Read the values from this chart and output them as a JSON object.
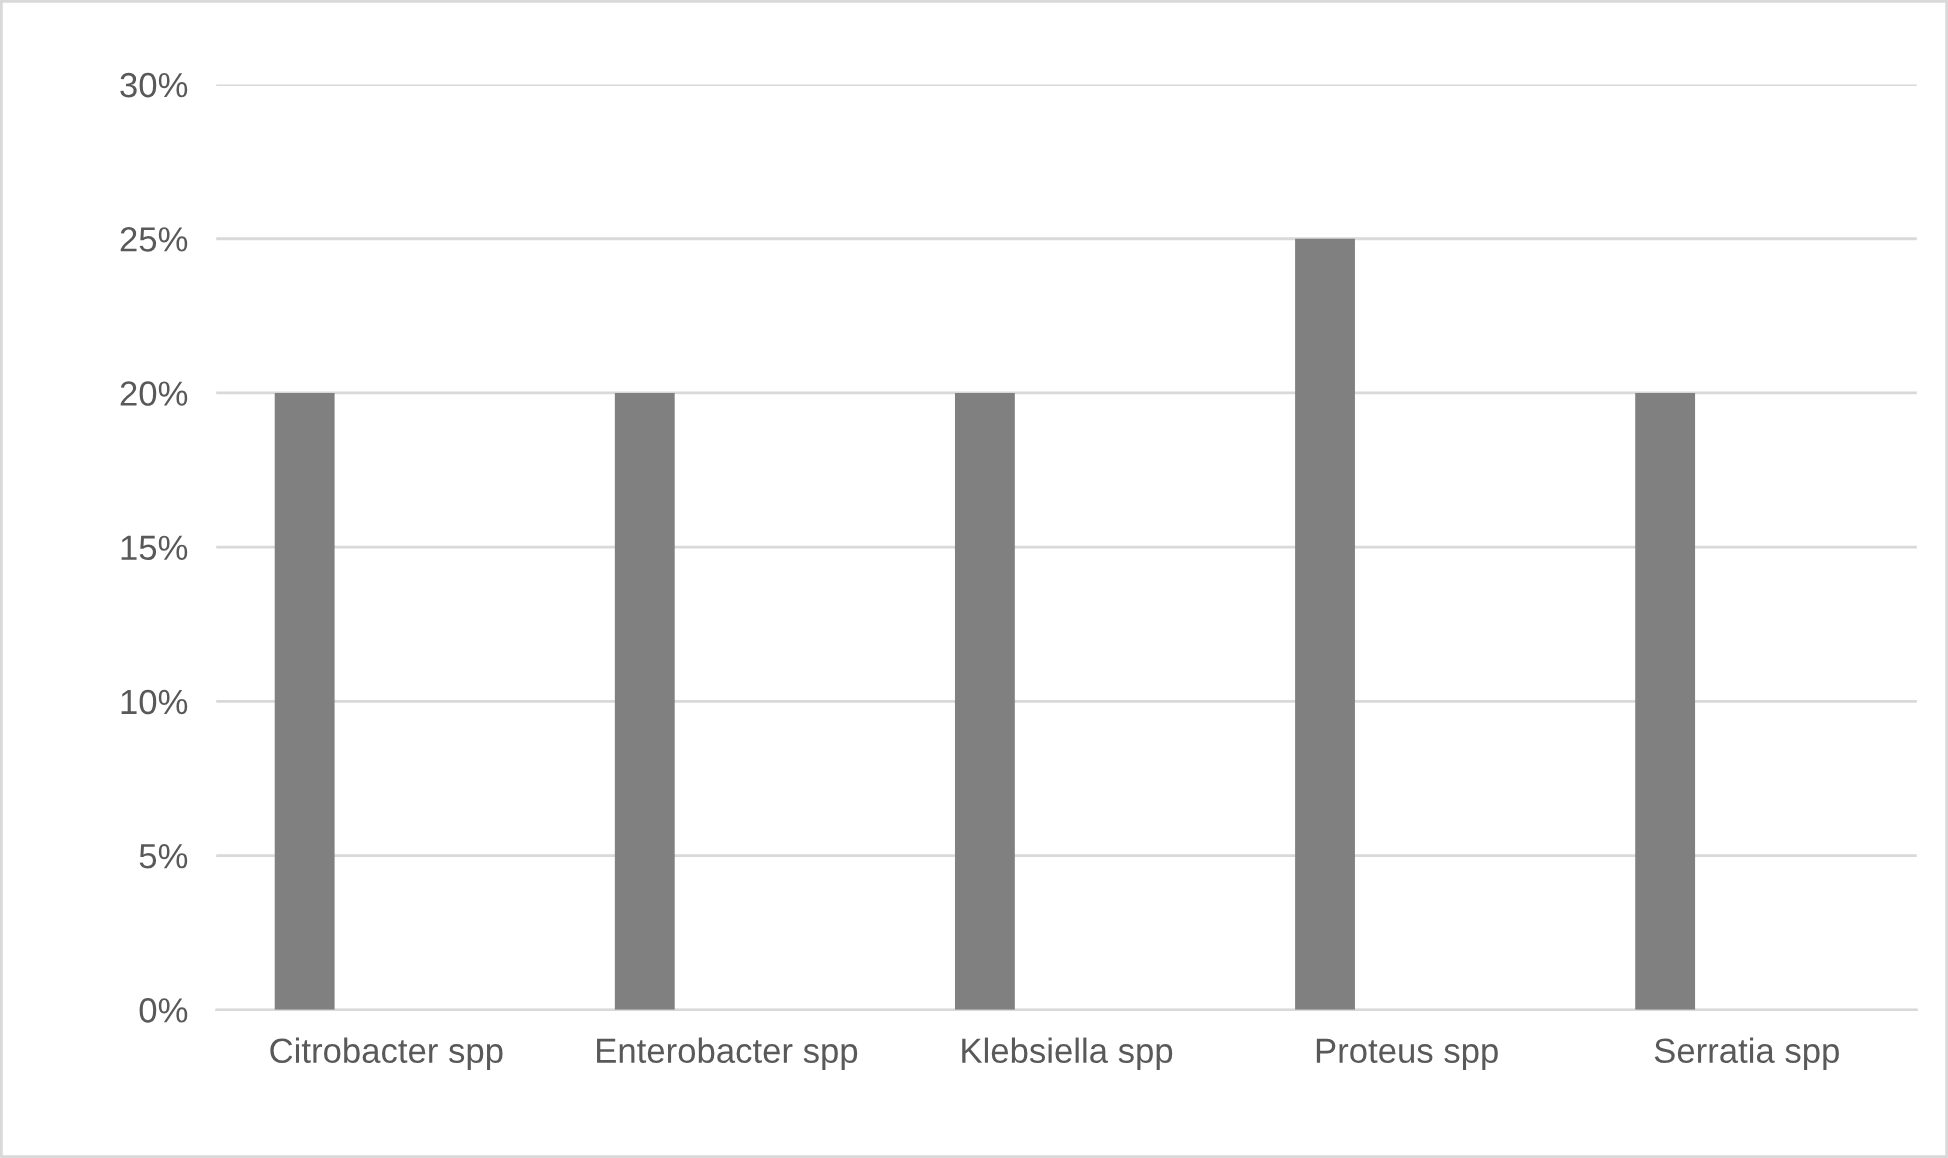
{
  "chart_data": {
    "type": "bar",
    "categories": [
      "Citrobacter spp",
      "Enterobacter spp",
      "Klebsiella spp",
      "Proteus spp",
      "Serratia spp"
    ],
    "values": [
      20,
      20,
      20,
      25,
      20
    ],
    "color": "#808080",
    "ylim": [
      0,
      30
    ],
    "yticks": [
      {
        "value": 0,
        "label": "0%"
      },
      {
        "value": 5,
        "label": "5%"
      },
      {
        "value": 10,
        "label": "10%"
      },
      {
        "value": 15,
        "label": "15%"
      },
      {
        "value": 20,
        "label": "20%"
      },
      {
        "value": 25,
        "label": "25%"
      },
      {
        "value": 30,
        "label": "30%"
      }
    ],
    "grid": "y",
    "legend": false
  }
}
